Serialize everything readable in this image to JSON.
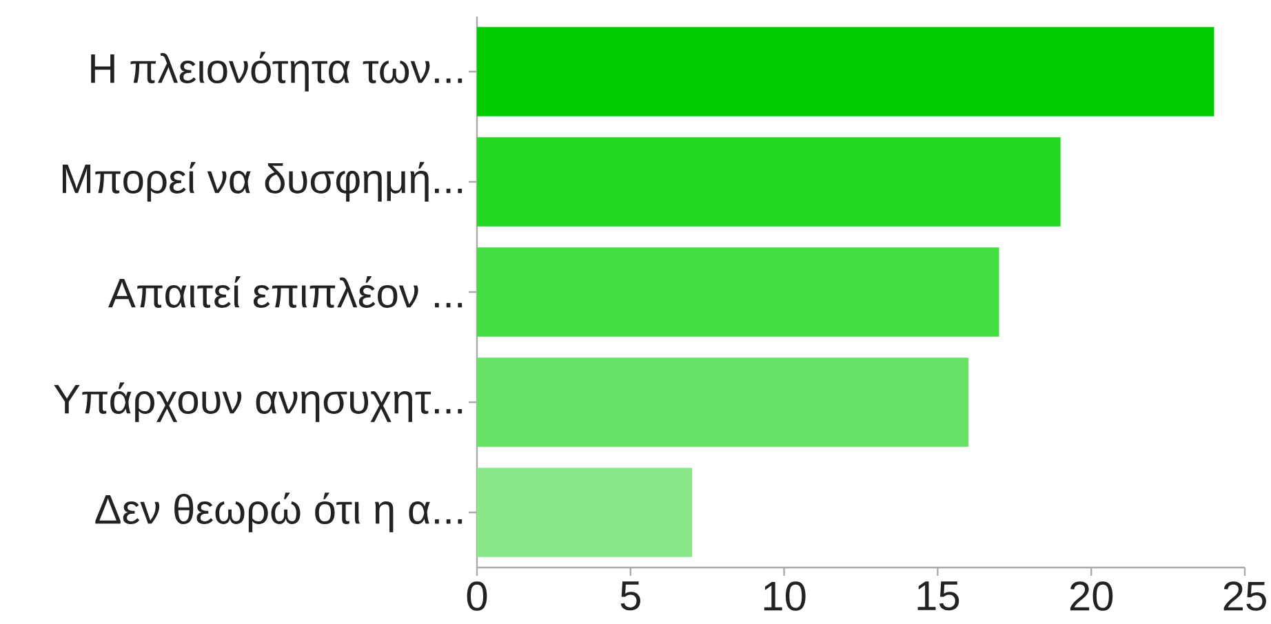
{
  "chart_data": {
    "type": "bar",
    "orientation": "horizontal",
    "categories": [
      "Η πλειονότητα των...",
      "Μπορεί να δυσφημή...",
      "Απαιτεί επιπλέον ...",
      "Υπάρχουν ανησυχητ...",
      "Δεν θεωρώ ότι η α..."
    ],
    "values": [
      24,
      19,
      17,
      16,
      7
    ],
    "colors": [
      "#00cc00",
      "#22d822",
      "#44dd44",
      "#66e266",
      "#88e888"
    ],
    "xlim": [
      0,
      25
    ],
    "xticks": [
      0,
      5,
      10,
      15,
      20,
      25
    ]
  }
}
